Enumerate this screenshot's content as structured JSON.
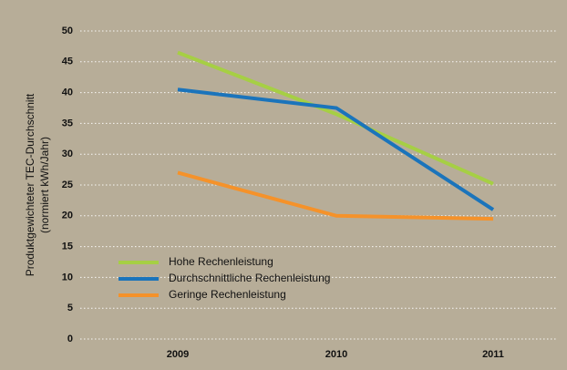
{
  "chart_data": {
    "type": "line",
    "ylabel": [
      "Produktgewichteter TEC-Durchschnitt",
      "(normiert kWh/Jahr)"
    ],
    "categories": [
      "2009",
      "2010",
      "2011"
    ],
    "series": [
      {
        "name": "Hohe Rechenleistung",
        "color": "#a6cf44",
        "values": [
          46.5,
          36.5,
          25.2
        ]
      },
      {
        "name": "Durchschnittliche Rechenleistung",
        "color": "#1b74bb",
        "values": [
          40.5,
          37.5,
          21
        ]
      },
      {
        "name": "Geringe Rechenleistung",
        "color": "#f5922a",
        "values": [
          27,
          20,
          19.5
        ]
      }
    ],
    "ylim": [
      0,
      50
    ],
    "yticks": [
      0,
      5,
      10,
      15,
      20,
      25,
      30,
      35,
      40,
      45,
      50
    ],
    "grid": true,
    "legend": "lower left"
  }
}
